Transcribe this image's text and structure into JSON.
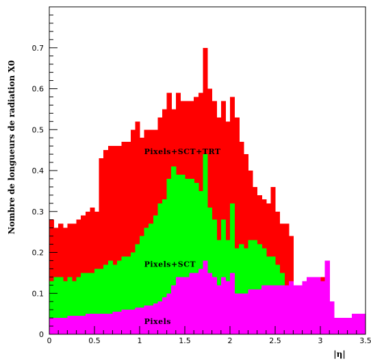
{
  "chart_data": {
    "type": "area",
    "style": "stacked-step-histogram",
    "xlabel": "|η|",
    "ylabel": "Nombre de longueurs de radiation X0",
    "xlim": [
      0,
      3.5
    ],
    "ylim": [
      0,
      0.8
    ],
    "xticks": [
      0,
      0.5,
      1,
      1.5,
      2,
      2.5,
      3,
      3.5
    ],
    "xtick_labels": [
      "0",
      "0.5",
      "1",
      "1.5",
      "2",
      "2.5",
      "3",
      "3.5"
    ],
    "yticks": [
      0,
      0.1,
      0.2,
      0.3,
      0.4,
      0.5,
      0.6,
      0.7
    ],
    "ytick_labels": [
      "0",
      "0.1",
      "0.2",
      "0.3",
      "0.4",
      "0.5",
      "0.6",
      "0.7"
    ],
    "bin_width": 0.05,
    "grid": false,
    "series": [
      {
        "name": "Pixels+SCT+TRT",
        "color": "#ff0000",
        "values": [
          0.28,
          0.26,
          0.27,
          0.26,
          0.27,
          0.27,
          0.28,
          0.29,
          0.3,
          0.31,
          0.3,
          0.43,
          0.45,
          0.46,
          0.46,
          0.46,
          0.47,
          0.47,
          0.5,
          0.52,
          0.48,
          0.5,
          0.5,
          0.5,
          0.53,
          0.55,
          0.59,
          0.55,
          0.59,
          0.57,
          0.57,
          0.57,
          0.58,
          0.59,
          0.7,
          0.6,
          0.57,
          0.53,
          0.57,
          0.52,
          0.58,
          0.53,
          0.47,
          0.44,
          0.4,
          0.36,
          0.34,
          0.33,
          0.32,
          0.36,
          0.3,
          0.27,
          0.27,
          0.24,
          0.12,
          0.12,
          0.13,
          0.14,
          0.14,
          0.14,
          0.14,
          0.18,
          0.08,
          0.04,
          0.04,
          0.04,
          0.04,
          0.05,
          0.05,
          0.05
        ]
      },
      {
        "name": "Pixels+SCT",
        "color": "#00ff00",
        "values": [
          0.13,
          0.14,
          0.14,
          0.13,
          0.14,
          0.13,
          0.14,
          0.15,
          0.15,
          0.15,
          0.16,
          0.16,
          0.17,
          0.18,
          0.17,
          0.18,
          0.19,
          0.19,
          0.2,
          0.22,
          0.24,
          0.26,
          0.27,
          0.29,
          0.32,
          0.33,
          0.38,
          0.41,
          0.39,
          0.39,
          0.38,
          0.38,
          0.37,
          0.35,
          0.44,
          0.31,
          0.28,
          0.23,
          0.28,
          0.23,
          0.32,
          0.21,
          0.22,
          0.21,
          0.23,
          0.23,
          0.22,
          0.21,
          0.19,
          0.19,
          0.17,
          0.15,
          0.12,
          0.13,
          0.12,
          0.12,
          0.13,
          0.14,
          0.14,
          0.14,
          0.13,
          0.18,
          0.08,
          0.04,
          0.04,
          0.04,
          0.04,
          0.05,
          0.05,
          0.05
        ]
      },
      {
        "name": "Pixels",
        "color": "#ff00ff",
        "values": [
          0.04,
          0.04,
          0.04,
          0.04,
          0.045,
          0.045,
          0.045,
          0.045,
          0.05,
          0.05,
          0.05,
          0.05,
          0.05,
          0.05,
          0.055,
          0.055,
          0.06,
          0.06,
          0.06,
          0.065,
          0.065,
          0.07,
          0.07,
          0.075,
          0.08,
          0.09,
          0.1,
          0.12,
          0.14,
          0.14,
          0.14,
          0.15,
          0.15,
          0.16,
          0.18,
          0.15,
          0.14,
          0.12,
          0.14,
          0.13,
          0.15,
          0.1,
          0.1,
          0.1,
          0.11,
          0.11,
          0.11,
          0.12,
          0.12,
          0.12,
          0.12,
          0.12,
          0.12,
          0.13,
          0.12,
          0.12,
          0.13,
          0.14,
          0.14,
          0.14,
          0.13,
          0.18,
          0.08,
          0.04,
          0.04,
          0.04,
          0.04,
          0.05,
          0.05,
          0.05
        ]
      }
    ],
    "annotations": [
      {
        "text": "Pixels+SCT+TRT",
        "x": 1.05,
        "y": 0.44
      },
      {
        "text": "Pixels+SCT",
        "x": 1.05,
        "y": 0.165
      },
      {
        "text": "Pixels",
        "x": 1.05,
        "y": 0.025
      }
    ]
  }
}
